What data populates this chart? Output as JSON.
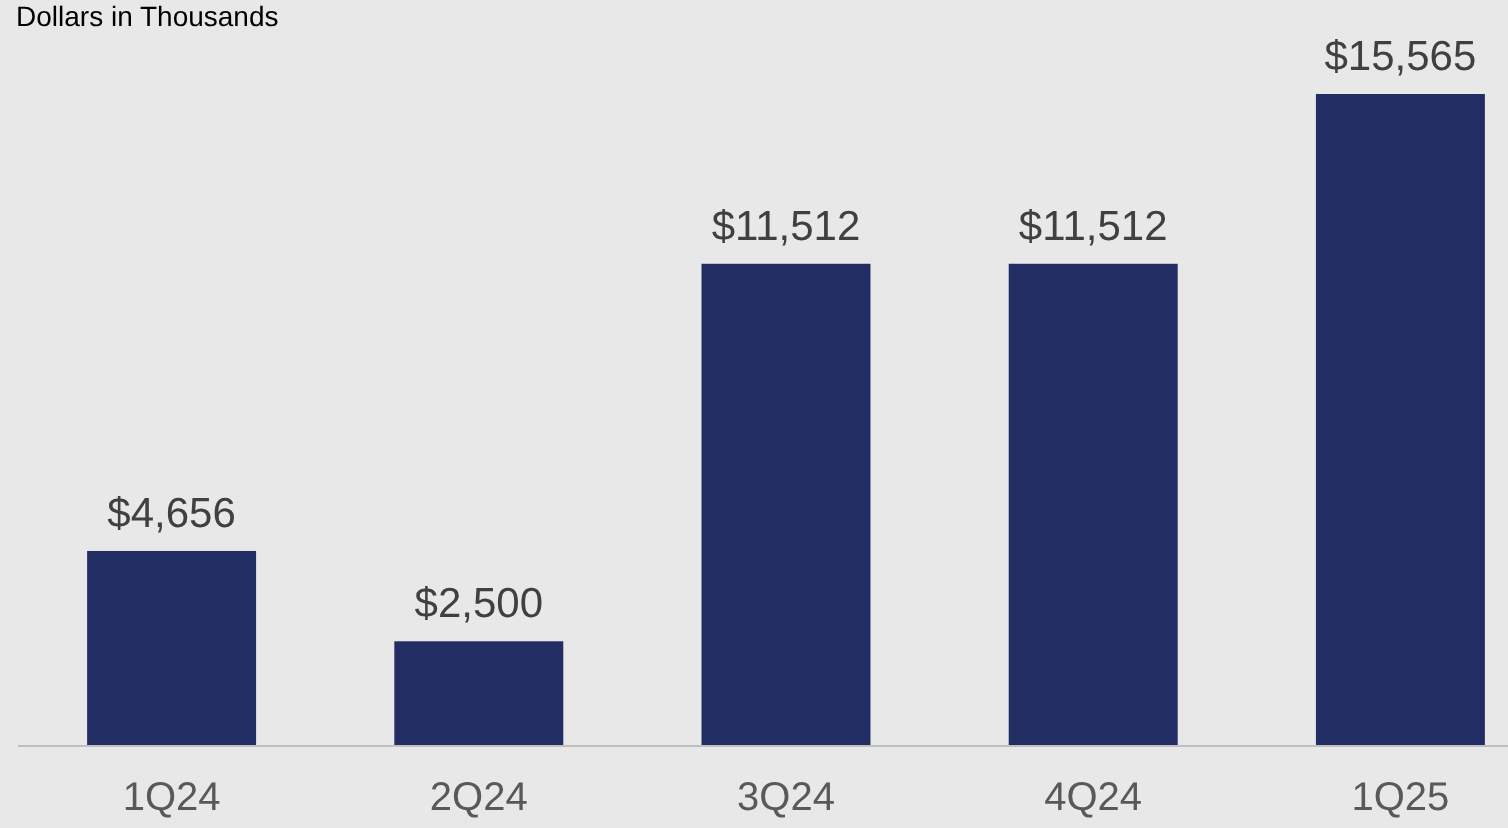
{
  "chart_data": {
    "type": "bar",
    "subtitle": "Dollars in Thousands",
    "categories": [
      "1Q24",
      "2Q24",
      "3Q24",
      "4Q24",
      "1Q25"
    ],
    "values": [
      4656,
      2500,
      11512,
      11512,
      15565
    ],
    "value_labels": [
      "$4,656",
      "$2,500",
      "$11,512",
      "$11,512",
      "$15,565"
    ],
    "color": "#222d63"
  }
}
